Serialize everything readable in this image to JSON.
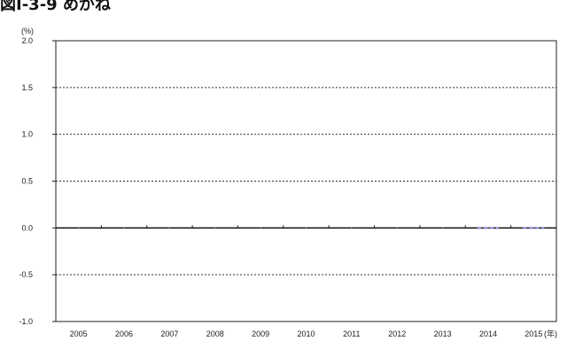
{
  "header": {
    "title": "図Ⅰ-3-9 めがね"
  },
  "chart_data": {
    "type": "line",
    "title": "",
    "ylabel": "(%)",
    "x_unit": "(年)",
    "ylim": [
      -1.0,
      2.0
    ],
    "yticks": [
      2.0,
      1.5,
      1.0,
      0.5,
      0.0,
      -0.5,
      -1.0
    ],
    "ytick_labels": [
      "2.0",
      "1.5",
      "1.0",
      "0.5",
      "0.0",
      "-0.5",
      "-1.0"
    ],
    "categories": [
      "2005",
      "2006",
      "2007",
      "2008",
      "2009",
      "2010",
      "2011",
      "2012",
      "2013",
      "2014",
      "2015"
    ],
    "grid": "horizontal dashed",
    "series": [
      {
        "color": "#8888dd",
        "values": [
          0.0,
          0.0,
          0.0,
          0.0,
          0.0,
          0.0,
          0.0,
          0.0,
          0.0,
          0.0,
          0.0
        ]
      }
    ]
  }
}
